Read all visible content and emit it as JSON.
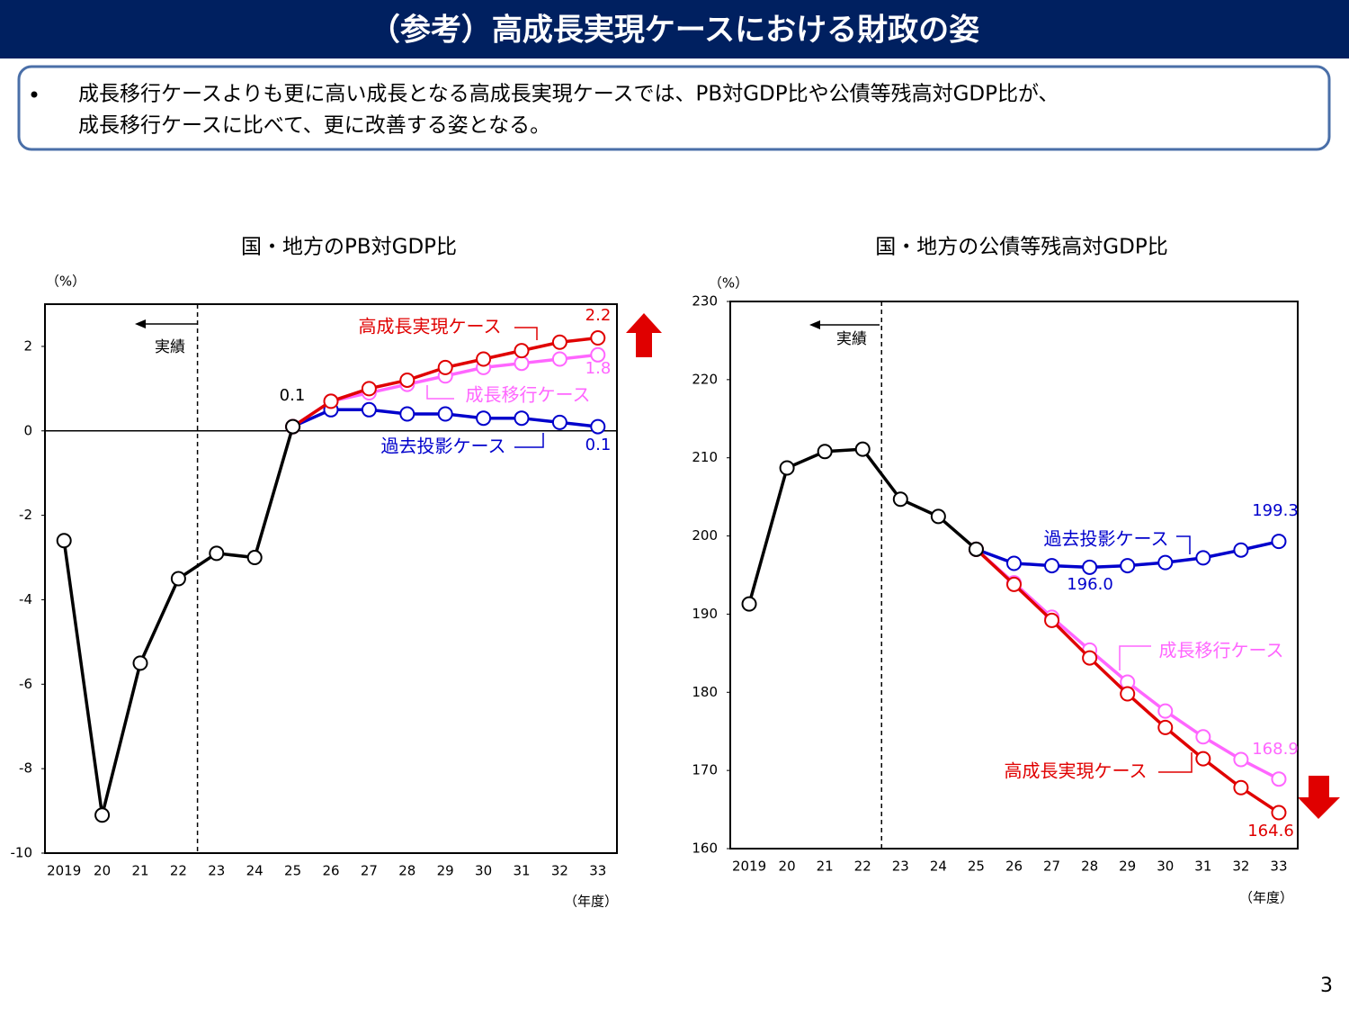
{
  "header": {
    "title": "（参考）高成長実現ケースにおける財政の姿"
  },
  "summary": [
    "成長移行ケースよりも更に高い成長となる高成長実現ケースでは、PB対GDP比や公債等残高対GDP比が、",
    "成長移行ケースに比べて、更に改善する姿となる。"
  ],
  "chart_data": [
    {
      "type": "line",
      "title": "国・地方のPB対GDP比",
      "unit_label": "（%）",
      "x_unit_label": "（年度）",
      "actual_label": "実績",
      "categories": [
        "2019",
        "20",
        "21",
        "22",
        "23",
        "24",
        "25",
        "26",
        "27",
        "28",
        "29",
        "30",
        "31",
        "32",
        "33"
      ],
      "ylim": [
        -10,
        3
      ],
      "yticks": [
        -10,
        -8,
        -6,
        -4,
        -2,
        0,
        2
      ],
      "series": [
        {
          "color": "#000000",
          "values": [
            -2.6,
            -9.1,
            -5.5,
            -3.5,
            -2.9,
            -3.0,
            0.1,
            null,
            null,
            null,
            null,
            null,
            null,
            null,
            null
          ],
          "value_labels": [
            null,
            null,
            null,
            null,
            null,
            null,
            "0.1",
            null,
            null,
            null,
            null,
            null,
            null,
            null,
            null
          ]
        },
        {
          "name": "過去投影ケース",
          "color": "#0000cc",
          "values": [
            null,
            null,
            null,
            null,
            null,
            null,
            0.1,
            0.5,
            0.5,
            0.4,
            0.4,
            0.3,
            0.3,
            0.2,
            0.1
          ],
          "value_labels": [
            null,
            null,
            null,
            null,
            null,
            null,
            null,
            null,
            null,
            null,
            null,
            null,
            null,
            null,
            "0.1"
          ]
        },
        {
          "name": "成長移行ケース",
          "color": "#ff66ff",
          "values": [
            null,
            null,
            null,
            null,
            null,
            null,
            0.1,
            0.7,
            0.9,
            1.1,
            1.3,
            1.5,
            1.6,
            1.7,
            1.8
          ],
          "value_labels": [
            null,
            null,
            null,
            null,
            null,
            null,
            null,
            null,
            null,
            null,
            null,
            null,
            null,
            null,
            "1.8"
          ]
        },
        {
          "name": "高成長実現ケース",
          "color": "#e00000",
          "values": [
            null,
            null,
            null,
            null,
            null,
            null,
            0.1,
            0.7,
            1.0,
            1.2,
            1.5,
            1.7,
            1.9,
            2.1,
            2.2
          ],
          "value_labels": [
            null,
            null,
            null,
            null,
            null,
            null,
            null,
            null,
            null,
            null,
            null,
            null,
            null,
            null,
            "2.2"
          ]
        }
      ]
    },
    {
      "type": "line",
      "title": "国・地方の公債等残高対GDP比",
      "unit_label": "（%）",
      "x_unit_label": "（年度）",
      "actual_label": "実績",
      "categories": [
        "2019",
        "20",
        "21",
        "22",
        "23",
        "24",
        "25",
        "26",
        "27",
        "28",
        "29",
        "30",
        "31",
        "32",
        "33"
      ],
      "ylim": [
        160,
        230
      ],
      "yticks": [
        160,
        170,
        180,
        190,
        200,
        210,
        220,
        230
      ],
      "series": [
        {
          "color": "#000000",
          "values": [
            191.3,
            208.7,
            210.8,
            211.1,
            204.7,
            202.5,
            198.3,
            null,
            null,
            null,
            null,
            null,
            null,
            null,
            null
          ]
        },
        {
          "name": "過去投影ケース",
          "color": "#0000cc",
          "values": [
            null,
            null,
            null,
            null,
            null,
            null,
            198.3,
            196.5,
            196.2,
            196.0,
            196.2,
            196.6,
            197.2,
            198.2,
            199.3
          ],
          "value_labels": [
            null,
            null,
            null,
            null,
            null,
            null,
            null,
            null,
            null,
            "196.0",
            null,
            null,
            null,
            null,
            "199.3"
          ]
        },
        {
          "name": "成長移行ケース",
          "color": "#ff66ff",
          "values": [
            null,
            null,
            null,
            null,
            null,
            null,
            198.3,
            194.0,
            189.6,
            185.4,
            181.3,
            177.6,
            174.3,
            171.4,
            168.9
          ],
          "value_labels": [
            null,
            null,
            null,
            null,
            null,
            null,
            null,
            null,
            null,
            null,
            null,
            null,
            null,
            null,
            "168.9"
          ]
        },
        {
          "name": "高成長実現ケース",
          "color": "#e00000",
          "values": [
            null,
            null,
            null,
            null,
            null,
            null,
            198.3,
            193.8,
            189.2,
            184.4,
            179.8,
            175.5,
            171.5,
            167.8,
            164.6
          ],
          "value_labels": [
            null,
            null,
            null,
            null,
            null,
            null,
            null,
            null,
            null,
            null,
            null,
            null,
            null,
            null,
            "164.6"
          ]
        }
      ]
    }
  ],
  "page_number": "3"
}
